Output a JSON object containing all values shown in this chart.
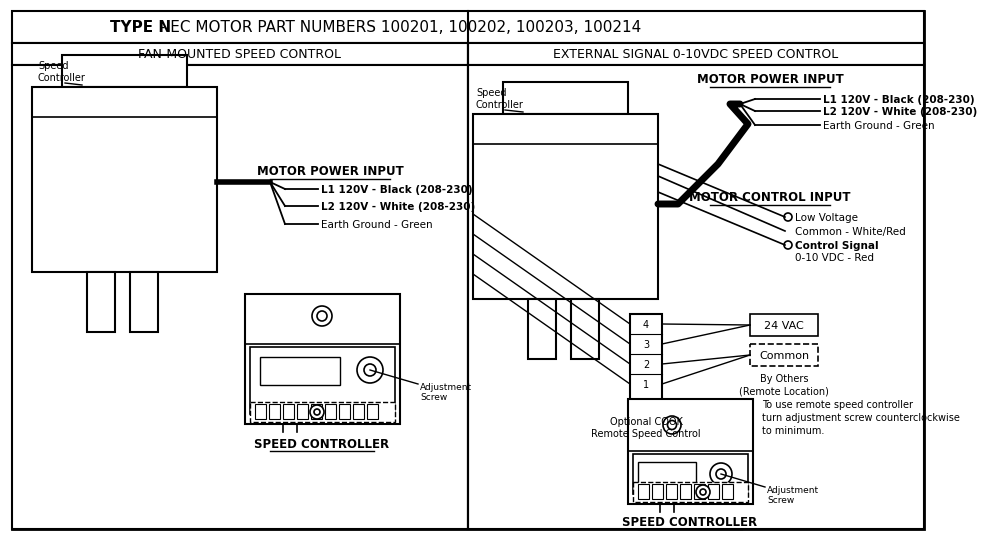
{
  "title_bold": "TYPE N",
  "title_rest": " - EC MOTOR PART NUMBERS 100201, 100202, 100203, 100214",
  "left_subtitle": "FAN-MOUNTED SPEED CONTROL",
  "right_subtitle": "EXTERNAL SIGNAL 0-10VDC SPEED CONTROL",
  "left": {
    "motor_power_input": "MOTOR POWER INPUT",
    "l1": "L1 120V - Black (208-230)",
    "l2": "L2 120V - White (208-230)",
    "earth": "Earth Ground - Green",
    "speed_ctrl_label": "Speed\nController",
    "speed_controller": "SPEED CONTROLLER",
    "adj_screw": "Adjustment\nScrew"
  },
  "right": {
    "motor_power_input": "MOTOR POWER INPUT",
    "l1": "L1 120V - Black (208-230)",
    "l2": "L2 120V - White (208-230)",
    "earth": "Earth Ground - Green",
    "motor_control_input": "MOTOR CONTROL INPUT",
    "low_voltage": "Low Voltage",
    "common_wire": "Common - White/Red",
    "control_signal": "Control Signal",
    "control_signal2": "0-10 VDC - Red",
    "speed_ctrl_label": "Speed\nController",
    "optional_cook": "Optional COOK\nRemote Speed Control",
    "by_others": "By Others\n(Remote Location)",
    "vac_24": "24 VAC",
    "common_box": "Common",
    "note": "To use remote speed controller\nturn adjustment screw counterclockwise\nto minimum.",
    "adj_screw": "Adjustment\nScrew",
    "speed_controller": "SPEED CONTROLLER"
  }
}
